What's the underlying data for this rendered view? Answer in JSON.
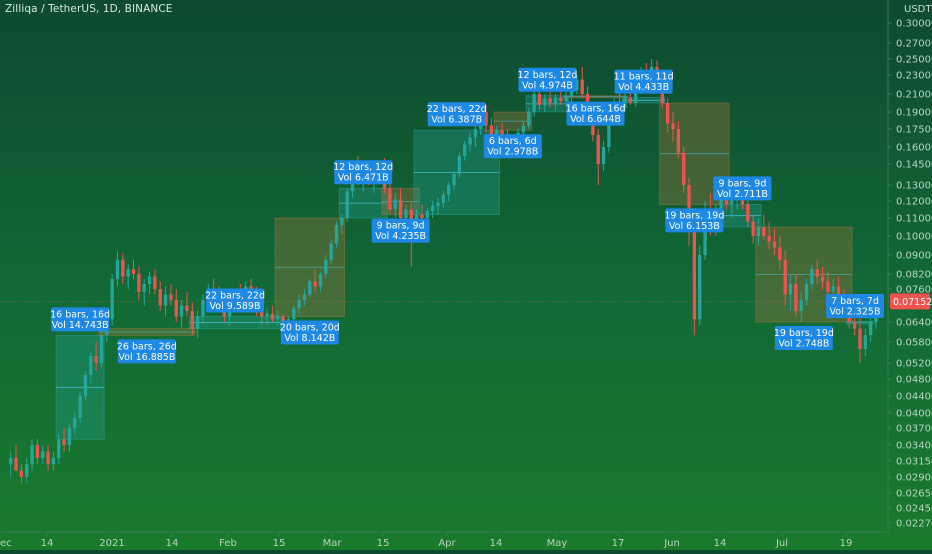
{
  "header": {
    "title": "Zilliqa / TetherUS, 1D, BINANCE"
  },
  "colors": {
    "up": "#26a69a",
    "down": "#ef5350",
    "box_up_fill": "rgba(38,166,154,0.30)",
    "box_down_fill": "rgba(200,120,60,0.28)",
    "label_bg": "#1e88e5",
    "price_tag": "#ef5350"
  },
  "chart_data": {
    "type": "candlestick",
    "y_axis": {
      "unit": "USDT",
      "ticks": [
        "0.30000",
        "0.27000",
        "0.25000",
        "0.23000",
        "0.21000",
        "0.19000",
        "0.17500",
        "0.16000",
        "0.14500",
        "0.13000",
        "0.12000",
        "0.11000",
        "0.10000",
        "0.09000",
        "0.08200",
        "0.07600",
        "0.06400",
        "0.05800",
        "0.05200",
        "0.04800",
        "0.04400",
        "0.04000",
        "0.03700",
        "0.03400",
        "0.03150",
        "0.02900",
        "0.02650",
        "0.02450",
        "0.02270"
      ]
    },
    "x_axis": {
      "ticks": [
        "ec",
        "14",
        "2021",
        "14",
        "Feb",
        "15",
        "Mar",
        "15",
        "Apr",
        "14",
        "May",
        "17",
        "Jun",
        "14",
        "Jul",
        "19"
      ]
    },
    "last_price": "0.07152",
    "candles": [
      [
        0.031,
        0.033,
        0.029,
        0.032
      ],
      [
        0.032,
        0.034,
        0.03,
        0.03
      ],
      [
        0.03,
        0.031,
        0.028,
        0.029
      ],
      [
        0.029,
        0.032,
        0.028,
        0.031
      ],
      [
        0.031,
        0.035,
        0.03,
        0.034
      ],
      [
        0.034,
        0.035,
        0.031,
        0.032
      ],
      [
        0.032,
        0.034,
        0.031,
        0.033
      ],
      [
        0.033,
        0.034,
        0.03,
        0.031
      ],
      [
        0.031,
        0.033,
        0.03,
        0.032
      ],
      [
        0.032,
        0.036,
        0.031,
        0.035
      ],
      [
        0.035,
        0.037,
        0.033,
        0.034
      ],
      [
        0.034,
        0.038,
        0.033,
        0.037
      ],
      [
        0.037,
        0.04,
        0.036,
        0.039
      ],
      [
        0.039,
        0.045,
        0.038,
        0.044
      ],
      [
        0.044,
        0.05,
        0.043,
        0.049
      ],
      [
        0.049,
        0.055,
        0.047,
        0.054
      ],
      [
        0.054,
        0.058,
        0.05,
        0.052
      ],
      [
        0.052,
        0.062,
        0.051,
        0.06
      ],
      [
        0.06,
        0.067,
        0.058,
        0.065
      ],
      [
        0.065,
        0.082,
        0.063,
        0.08
      ],
      [
        0.08,
        0.092,
        0.077,
        0.088
      ],
      [
        0.088,
        0.091,
        0.078,
        0.081
      ],
      [
        0.081,
        0.086,
        0.076,
        0.084
      ],
      [
        0.084,
        0.088,
        0.08,
        0.082
      ],
      [
        0.082,
        0.085,
        0.072,
        0.075
      ],
      [
        0.075,
        0.08,
        0.07,
        0.078
      ],
      [
        0.078,
        0.083,
        0.074,
        0.081
      ],
      [
        0.081,
        0.084,
        0.074,
        0.076
      ],
      [
        0.076,
        0.079,
        0.068,
        0.07
      ],
      [
        0.07,
        0.077,
        0.066,
        0.074
      ],
      [
        0.074,
        0.078,
        0.07,
        0.072
      ],
      [
        0.072,
        0.076,
        0.064,
        0.066
      ],
      [
        0.066,
        0.072,
        0.062,
        0.07
      ],
      [
        0.07,
        0.075,
        0.066,
        0.068
      ],
      [
        0.068,
        0.071,
        0.06,
        0.062
      ],
      [
        0.062,
        0.068,
        0.059,
        0.066
      ],
      [
        0.066,
        0.074,
        0.064,
        0.072
      ],
      [
        0.072,
        0.078,
        0.07,
        0.076
      ],
      [
        0.076,
        0.08,
        0.072,
        0.074
      ],
      [
        0.074,
        0.077,
        0.068,
        0.07
      ],
      [
        0.07,
        0.073,
        0.064,
        0.066
      ],
      [
        0.066,
        0.072,
        0.063,
        0.07
      ],
      [
        0.07,
        0.076,
        0.068,
        0.075
      ],
      [
        0.075,
        0.078,
        0.071,
        0.073
      ],
      [
        0.073,
        0.079,
        0.071,
        0.077
      ],
      [
        0.077,
        0.08,
        0.072,
        0.074
      ],
      [
        0.074,
        0.077,
        0.066,
        0.068
      ],
      [
        0.068,
        0.072,
        0.063,
        0.066
      ],
      [
        0.066,
        0.069,
        0.063,
        0.067
      ],
      [
        0.067,
        0.07,
        0.064,
        0.065
      ],
      [
        0.065,
        0.068,
        0.063,
        0.066
      ],
      [
        0.066,
        0.067,
        0.062,
        0.063
      ],
      [
        0.063,
        0.066,
        0.061,
        0.065
      ],
      [
        0.065,
        0.07,
        0.064,
        0.069
      ],
      [
        0.069,
        0.074,
        0.067,
        0.072
      ],
      [
        0.072,
        0.076,
        0.07,
        0.074
      ],
      [
        0.074,
        0.08,
        0.073,
        0.079
      ],
      [
        0.079,
        0.084,
        0.075,
        0.077
      ],
      [
        0.077,
        0.083,
        0.075,
        0.082
      ],
      [
        0.082,
        0.09,
        0.08,
        0.088
      ],
      [
        0.088,
        0.098,
        0.086,
        0.096
      ],
      [
        0.096,
        0.108,
        0.094,
        0.106
      ],
      [
        0.106,
        0.112,
        0.101,
        0.11
      ],
      [
        0.11,
        0.128,
        0.108,
        0.126
      ],
      [
        0.126,
        0.148,
        0.122,
        0.145
      ],
      [
        0.145,
        0.152,
        0.13,
        0.134
      ],
      [
        0.134,
        0.142,
        0.126,
        0.138
      ],
      [
        0.138,
        0.145,
        0.13,
        0.132
      ],
      [
        0.132,
        0.14,
        0.125,
        0.136
      ],
      [
        0.136,
        0.148,
        0.133,
        0.145
      ],
      [
        0.145,
        0.15,
        0.125,
        0.128
      ],
      [
        0.128,
        0.132,
        0.112,
        0.115
      ],
      [
        0.115,
        0.125,
        0.11,
        0.121
      ],
      [
        0.121,
        0.128,
        0.108,
        0.11
      ],
      [
        0.11,
        0.118,
        0.104,
        0.115
      ],
      [
        0.115,
        0.12,
        0.085,
        0.106
      ],
      [
        0.106,
        0.115,
        0.103,
        0.112
      ],
      [
        0.112,
        0.118,
        0.108,
        0.11
      ],
      [
        0.11,
        0.116,
        0.107,
        0.114
      ],
      [
        0.114,
        0.12,
        0.11,
        0.117
      ],
      [
        0.117,
        0.122,
        0.112,
        0.119
      ],
      [
        0.119,
        0.126,
        0.116,
        0.124
      ],
      [
        0.124,
        0.132,
        0.12,
        0.13
      ],
      [
        0.13,
        0.14,
        0.127,
        0.138
      ],
      [
        0.138,
        0.155,
        0.135,
        0.152
      ],
      [
        0.152,
        0.165,
        0.148,
        0.162
      ],
      [
        0.162,
        0.172,
        0.156,
        0.168
      ],
      [
        0.168,
        0.178,
        0.16,
        0.175
      ],
      [
        0.175,
        0.195,
        0.17,
        0.19
      ],
      [
        0.19,
        0.198,
        0.172,
        0.178
      ],
      [
        0.178,
        0.185,
        0.165,
        0.17
      ],
      [
        0.17,
        0.178,
        0.16,
        0.174
      ],
      [
        0.174,
        0.18,
        0.162,
        0.165
      ],
      [
        0.165,
        0.175,
        0.155,
        0.16
      ],
      [
        0.16,
        0.17,
        0.152,
        0.168
      ],
      [
        0.168,
        0.176,
        0.16,
        0.172
      ],
      [
        0.172,
        0.182,
        0.168,
        0.178
      ],
      [
        0.178,
        0.195,
        0.175,
        0.19
      ],
      [
        0.19,
        0.215,
        0.186,
        0.21
      ],
      [
        0.21,
        0.22,
        0.192,
        0.198
      ],
      [
        0.198,
        0.21,
        0.19,
        0.205
      ],
      [
        0.205,
        0.212,
        0.195,
        0.2
      ],
      [
        0.2,
        0.21,
        0.192,
        0.206
      ],
      [
        0.206,
        0.215,
        0.198,
        0.202
      ],
      [
        0.202,
        0.212,
        0.196,
        0.208
      ],
      [
        0.208,
        0.218,
        0.2,
        0.214
      ],
      [
        0.214,
        0.23,
        0.21,
        0.225
      ],
      [
        0.225,
        0.24,
        0.205,
        0.21
      ],
      [
        0.21,
        0.218,
        0.18,
        0.185
      ],
      [
        0.185,
        0.195,
        0.165,
        0.17
      ],
      [
        0.17,
        0.175,
        0.13,
        0.145
      ],
      [
        0.145,
        0.165,
        0.14,
        0.16
      ],
      [
        0.16,
        0.19,
        0.155,
        0.185
      ],
      [
        0.185,
        0.205,
        0.18,
        0.2
      ],
      [
        0.2,
        0.212,
        0.192,
        0.195
      ],
      [
        0.195,
        0.21,
        0.19,
        0.206
      ],
      [
        0.206,
        0.215,
        0.198,
        0.2
      ],
      [
        0.2,
        0.22,
        0.196,
        0.216
      ],
      [
        0.216,
        0.24,
        0.21,
        0.235
      ],
      [
        0.235,
        0.245,
        0.22,
        0.225
      ],
      [
        0.225,
        0.25,
        0.215,
        0.24
      ],
      [
        0.24,
        0.248,
        0.215,
        0.22
      ],
      [
        0.22,
        0.228,
        0.195,
        0.2
      ],
      [
        0.2,
        0.205,
        0.172,
        0.18
      ],
      [
        0.18,
        0.19,
        0.165,
        0.175
      ],
      [
        0.175,
        0.182,
        0.15,
        0.155
      ],
      [
        0.155,
        0.16,
        0.125,
        0.13
      ],
      [
        0.13,
        0.135,
        0.095,
        0.105
      ],
      [
        0.105,
        0.11,
        0.06,
        0.065
      ],
      [
        0.065,
        0.095,
        0.063,
        0.09
      ],
      [
        0.09,
        0.12,
        0.088,
        0.115
      ],
      [
        0.115,
        0.125,
        0.1,
        0.105
      ],
      [
        0.105,
        0.118,
        0.1,
        0.115
      ],
      [
        0.115,
        0.135,
        0.112,
        0.13
      ],
      [
        0.13,
        0.136,
        0.115,
        0.118
      ],
      [
        0.118,
        0.125,
        0.11,
        0.122
      ],
      [
        0.122,
        0.13,
        0.115,
        0.126
      ],
      [
        0.126,
        0.132,
        0.115,
        0.118
      ],
      [
        0.118,
        0.122,
        0.105,
        0.108
      ],
      [
        0.108,
        0.112,
        0.096,
        0.1
      ],
      [
        0.1,
        0.11,
        0.095,
        0.105
      ],
      [
        0.105,
        0.112,
        0.098,
        0.1
      ],
      [
        0.1,
        0.108,
        0.093,
        0.097
      ],
      [
        0.097,
        0.104,
        0.09,
        0.094
      ],
      [
        0.094,
        0.1,
        0.084,
        0.088
      ],
      [
        0.088,
        0.092,
        0.07,
        0.074
      ],
      [
        0.074,
        0.082,
        0.068,
        0.078
      ],
      [
        0.078,
        0.082,
        0.066,
        0.068
      ],
      [
        0.068,
        0.075,
        0.064,
        0.072
      ],
      [
        0.072,
        0.08,
        0.07,
        0.078
      ],
      [
        0.078,
        0.086,
        0.076,
        0.084
      ],
      [
        0.084,
        0.088,
        0.078,
        0.081
      ],
      [
        0.081,
        0.085,
        0.076,
        0.079
      ],
      [
        0.079,
        0.083,
        0.073,
        0.075
      ],
      [
        0.075,
        0.08,
        0.07,
        0.077
      ],
      [
        0.077,
        0.081,
        0.07,
        0.072
      ],
      [
        0.072,
        0.076,
        0.066,
        0.068
      ],
      [
        0.068,
        0.072,
        0.062,
        0.064
      ],
      [
        0.064,
        0.068,
        0.06,
        0.062
      ],
      [
        0.062,
        0.066,
        0.052,
        0.056
      ],
      [
        0.056,
        0.062,
        0.054,
        0.06
      ],
      [
        0.06,
        0.066,
        0.058,
        0.064
      ],
      [
        0.064,
        0.07,
        0.062,
        0.068
      ],
      [
        0.068,
        0.074,
        0.066,
        0.072
      ]
    ],
    "boxes": [
      {
        "start": 9,
        "end": 17,
        "dir": "up",
        "label": [
          "16 bars, 16d",
          "Vol 14.743B"
        ],
        "lpos": "top"
      },
      {
        "start": 17,
        "end": 34,
        "dir": "down",
        "label": [
          "26 bars, 26d",
          "Vol 16.885B"
        ],
        "lpos": "bottom"
      },
      {
        "start": 34,
        "end": 50,
        "dir": "up",
        "label": [
          "22 bars, 22d",
          "Vol 9.589B"
        ],
        "lpos": "top"
      },
      {
        "start": 50,
        "end": 62,
        "dir": "down",
        "label": [
          "20 bars, 20d",
          "Vol 8.142B"
        ],
        "lpos": "bottom"
      },
      {
        "start": 62,
        "end": 70,
        "dir": "up",
        "label": [
          "12 bars, 12d",
          "Vol 6.471B"
        ],
        "lpos": "top"
      },
      {
        "start": 70,
        "end": 76,
        "dir": "down",
        "label": [
          "9 bars, 9d",
          "Vol 4.235B"
        ],
        "lpos": "bottom"
      },
      {
        "start": 76,
        "end": 91,
        "dir": "up",
        "label": [
          "22 bars, 22d",
          "Vol 6.387B"
        ],
        "lpos": "top"
      },
      {
        "start": 91,
        "end": 97,
        "dir": "down",
        "label": [
          "6 bars, 6d",
          "Vol 2.978B"
        ],
        "lpos": "bottom"
      },
      {
        "start": 97,
        "end": 104,
        "dir": "up",
        "label": [
          "12 bars, 12d",
          "Vol 4.974B"
        ],
        "lpos": "top"
      },
      {
        "start": 104,
        "end": 115,
        "dir": "down",
        "label": [
          "16 bars, 16d",
          "Vol 6.644B"
        ],
        "lpos": "bottom"
      },
      {
        "start": 115,
        "end": 122,
        "dir": "up",
        "label": [
          "11 bars, 11d",
          "Vol 4.433B"
        ],
        "lpos": "top"
      },
      {
        "start": 122,
        "end": 134,
        "dir": "down",
        "label": [
          "19 bars, 19d",
          "Vol 6.153B"
        ],
        "lpos": "bottom"
      },
      {
        "start": 134,
        "end": 140,
        "dir": "up",
        "label": [
          "9 bars, 9d",
          "Vol 2.711B"
        ],
        "lpos": "top"
      },
      {
        "start": 140,
        "end": 157,
        "dir": "down",
        "label": [
          "19 bars, 19d",
          "Vol 2.748B"
        ],
        "lpos": "bottom"
      },
      {
        "start": 157,
        "end": 161,
        "dir": "up",
        "label": [
          "7 bars, 7d",
          "Vol 2.325B"
        ],
        "lpos": "top"
      }
    ]
  }
}
